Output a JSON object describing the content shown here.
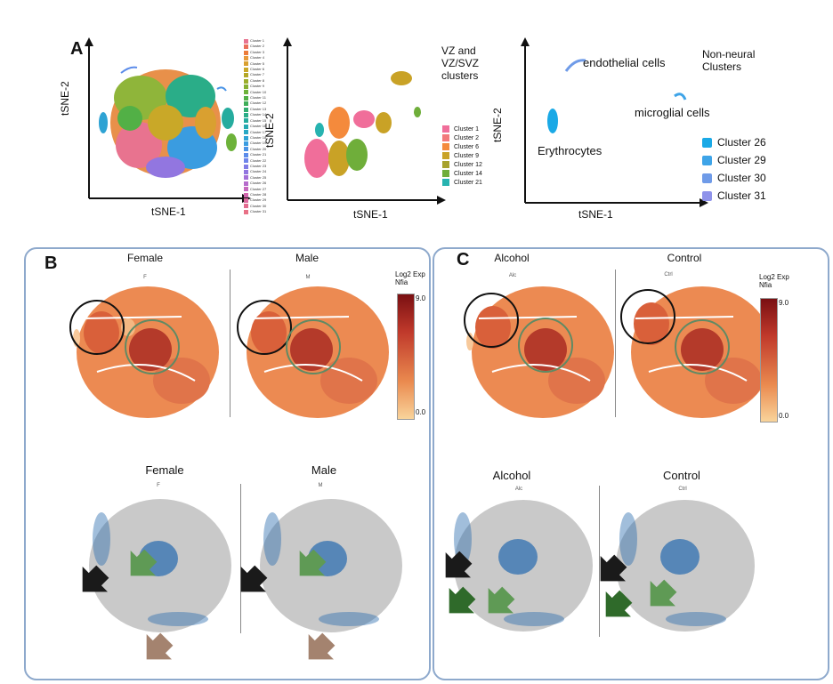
{
  "panels": {
    "A": {
      "letter": "A",
      "plot1": {
        "xlabel": "tSNE-1",
        "ylabel": "tSNE-2",
        "legend": [
          {
            "label": "Cluster 1",
            "color": "#e8738f"
          },
          {
            "label": "Cluster 2",
            "color": "#ea6f5a"
          },
          {
            "label": "Cluster 3",
            "color": "#ec7c3a"
          },
          {
            "label": "Cluster 4",
            "color": "#e89a3a"
          },
          {
            "label": "Cluster 5",
            "color": "#d9a030"
          },
          {
            "label": "Cluster 6",
            "color": "#c9a828"
          },
          {
            "label": "Cluster 7",
            "color": "#b4a828"
          },
          {
            "label": "Cluster 8",
            "color": "#9cae2c"
          },
          {
            "label": "Cluster 9",
            "color": "#86b032"
          },
          {
            "label": "Cluster 10",
            "color": "#6db23a"
          },
          {
            "label": "Cluster 11",
            "color": "#52b046"
          },
          {
            "label": "Cluster 12",
            "color": "#3eae58"
          },
          {
            "label": "Cluster 13",
            "color": "#32ad70"
          },
          {
            "label": "Cluster 14",
            "color": "#2aad88"
          },
          {
            "label": "Cluster 15",
            "color": "#26ac9e"
          },
          {
            "label": "Cluster 16",
            "color": "#26aab2"
          },
          {
            "label": "Cluster 17",
            "color": "#28a8c4"
          },
          {
            "label": "Cluster 18",
            "color": "#2ea3d4"
          },
          {
            "label": "Cluster 19",
            "color": "#3a9ce0"
          },
          {
            "label": "Cluster 20",
            "color": "#4a94e6"
          },
          {
            "label": "Cluster 21",
            "color": "#5c8cea"
          },
          {
            "label": "Cluster 22",
            "color": "#6e84ea"
          },
          {
            "label": "Cluster 23",
            "color": "#807ce6"
          },
          {
            "label": "Cluster 24",
            "color": "#9276e0"
          },
          {
            "label": "Cluster 25",
            "color": "#a470d8"
          },
          {
            "label": "Cluster 26",
            "color": "#b66ccc"
          },
          {
            "label": "Cluster 27",
            "color": "#c668be"
          },
          {
            "label": "Cluster 28",
            "color": "#d266ae"
          },
          {
            "label": "Cluster 29",
            "color": "#dc689e"
          },
          {
            "label": "Cluster 30",
            "color": "#e36c90"
          },
          {
            "label": "Cluster 31",
            "color": "#e87086"
          }
        ]
      },
      "plot2": {
        "xlabel": "tSNE-1",
        "ylabel": "tSNE-2",
        "title": "VZ and\nVZ/SVZ\nclusters",
        "legend": [
          {
            "label": "Cluster 1",
            "color": "#f06e9a"
          },
          {
            "label": "Cluster 2",
            "color": "#f2797b"
          },
          {
            "label": "Cluster 6",
            "color": "#f48a3c"
          },
          {
            "label": "Cluster 9",
            "color": "#c9a226"
          },
          {
            "label": "Cluster 12",
            "color": "#a7a22c"
          },
          {
            "label": "Cluster 14",
            "color": "#6fae3a"
          },
          {
            "label": "Cluster 21",
            "color": "#27b3b0"
          }
        ]
      },
      "plot3": {
        "xlabel": "tSNE-1",
        "ylabel": "tSNE-2",
        "title": "Non-neural\nClusters",
        "annotations": {
          "endothelial": "endothelial cells",
          "microglial": "microglial cells",
          "erythrocytes": "Erythrocytes"
        },
        "legend": [
          {
            "label": "Cluster 26",
            "color": "#1aa9e6"
          },
          {
            "label": "Cluster 29",
            "color": "#3ea4e8"
          },
          {
            "label": "Cluster 30",
            "color": "#6f9be8"
          },
          {
            "label": "Cluster 31",
            "color": "#8f93ea"
          }
        ]
      }
    },
    "B": {
      "letter": "B",
      "top_titles": [
        "Female",
        "Male"
      ],
      "top_minis": [
        "F",
        "M"
      ],
      "colorbar": {
        "title": "Log2 Exp\nNfia",
        "max": "9.0",
        "min": "0.0"
      },
      "bottom_titles": [
        "Female",
        "Male"
      ],
      "bottom_minis": [
        "F",
        "M"
      ]
    },
    "C": {
      "letter": "C",
      "top_titles": [
        "Alcohol",
        "Control"
      ],
      "top_minis": [
        "Alc",
        "Ctrl"
      ],
      "colorbar": {
        "title": "Log2 Exp\nNfia",
        "max": "9.0",
        "min": "0.0"
      },
      "bottom_titles": [
        "Alcohol",
        "Control"
      ],
      "bottom_minis": [
        "Alc",
        "Ctrl"
      ]
    }
  },
  "colors": {
    "box_border": "#8ea9cc",
    "black_circle": "#111111",
    "green_circle": "#5f8a64",
    "arrow_black": "#1a1a1a",
    "arrow_green_light": "#5f9a55",
    "arrow_green_dark": "#2f6a2a",
    "arrow_brown": "#a4836f",
    "feature_blue": "#2f6fb0",
    "grey_cells": "#c9c9c9"
  }
}
